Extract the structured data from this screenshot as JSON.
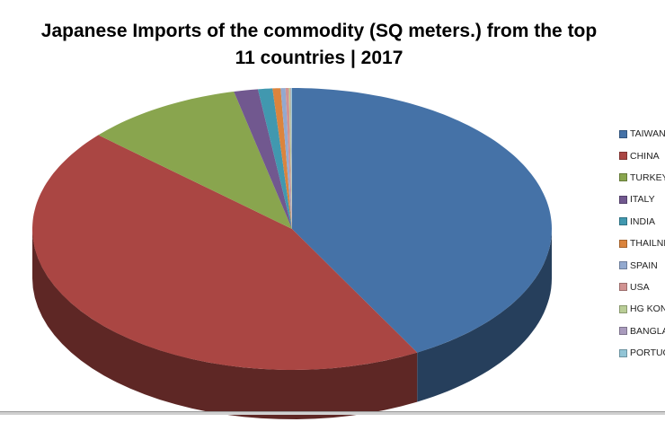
{
  "chart_data": {
    "type": "pie",
    "style": "3d",
    "title": "Japanese Imports of the commodity (SQ meters.) from the top",
    "title_line2": "11 countries | 2017",
    "legend_position": "right",
    "categories": [
      "TAIWAN",
      "CHINA",
      "TURKEY",
      "ITALY",
      "INDIA",
      "THAILND",
      "SPAIN",
      "USA",
      "HG KONG",
      "BANGLADESH",
      "PORTUGAL"
    ],
    "values": [
      42.0,
      44.6,
      9.8,
      1.5,
      0.9,
      0.5,
      0.3,
      0.2,
      0.1,
      0.05,
      0.05
    ],
    "colors": [
      "#4572A7",
      "#AA4643",
      "#89A54E",
      "#71588F",
      "#4198AF",
      "#DB843D",
      "#93A9CF",
      "#D19392",
      "#B9CD96",
      "#A99BBD",
      "#92C5D6"
    ]
  }
}
